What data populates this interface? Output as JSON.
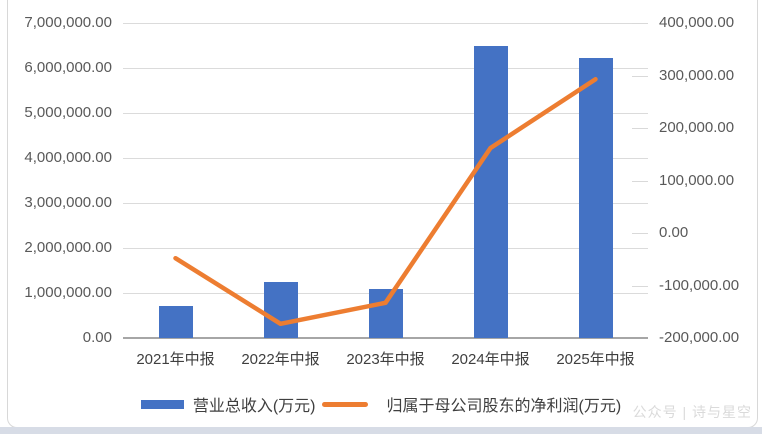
{
  "watermark": "公众号 | 诗与星空",
  "colors": {
    "bar": "#4472C4",
    "line": "#ED7D31",
    "gridline": "#DBDBDB",
    "axis_line": "#A6A6A6",
    "tick_text": "#595959",
    "bottom_strip": "#D7DCE6"
  },
  "chart_data": {
    "type": "combo (bar + line, dual axis)",
    "title": "",
    "categories": [
      "2021年中报",
      "2022年中报",
      "2023年中报",
      "2024年中报",
      "2025年中报"
    ],
    "series": [
      {
        "name": "营业总收入(万元)",
        "chart_type": "bar",
        "axis": "left",
        "color": "#4472C4",
        "values": [
          720000,
          1250000,
          1080000,
          6490000,
          6220000
        ]
      },
      {
        "name": "归属于母公司股东的净利润(万元)",
        "chart_type": "line",
        "axis": "right",
        "color": "#ED7D31",
        "values": [
          -48000,
          -173000,
          -133000,
          162000,
          293000
        ]
      }
    ],
    "left_axis": {
      "min": 0,
      "max": 7000000,
      "step": 1000000,
      "tick_labels": [
        "7,000,000.00",
        "6,000,000.00",
        "5,000,000.00",
        "4,000,000.00",
        "3,000,000.00",
        "2,000,000.00",
        "1,000,000.00",
        "0.00"
      ]
    },
    "right_axis": {
      "min": -200000,
      "max": 400000,
      "step": 100000,
      "tick_labels": [
        "400,000.00",
        "300,000.00",
        "200,000.00",
        "100,000.00",
        "0.00",
        "-100,000.00",
        "-200,000.00"
      ]
    },
    "grid": true,
    "legend_position": "bottom"
  }
}
